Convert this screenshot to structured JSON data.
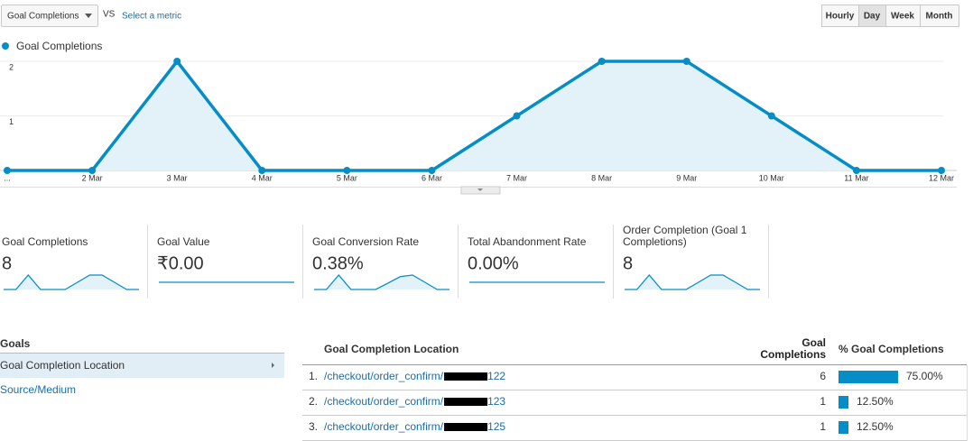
{
  "toolbar": {
    "metric": "Goal Completions",
    "vs": "VS",
    "compare_link": "Select a metric",
    "buttons": [
      {
        "label": "Hourly",
        "selected": false
      },
      {
        "label": "Day",
        "selected": true
      },
      {
        "label": "Week",
        "selected": false
      },
      {
        "label": "Month",
        "selected": false
      }
    ]
  },
  "chart_data": {
    "type": "line",
    "categories": [
      "...",
      "2 Mar",
      "3 Mar",
      "4 Mar",
      "5 Mar",
      "6 Mar",
      "7 Mar",
      "8 Mar",
      "9 Mar",
      "10 Mar",
      "11 Mar",
      "12 Mar"
    ],
    "series": [
      {
        "name": "Goal Completions",
        "color": "#058dc7",
        "values": [
          0,
          0,
          2,
          0,
          0,
          0,
          1,
          2,
          2,
          1,
          0,
          0
        ]
      }
    ],
    "ylim": [
      0,
      2
    ],
    "yticks": [
      1,
      2
    ],
    "grid": true
  },
  "scorecards": [
    {
      "title": "Goal Completions",
      "value": "8",
      "sparkline": [
        0,
        0,
        2,
        0,
        0,
        0,
        1,
        2,
        2,
        1,
        0,
        0
      ]
    },
    {
      "title": "Goal Value",
      "value": "₹0.00",
      "sparkline": [
        0,
        0,
        0,
        0,
        0,
        0,
        0,
        0,
        0,
        0,
        0,
        0
      ]
    },
    {
      "title": "Goal Conversion Rate",
      "value": "0.38%",
      "sparkline": [
        0,
        0,
        0.9,
        0,
        0,
        0,
        0.4,
        0.8,
        0.9,
        0.45,
        0,
        0
      ]
    },
    {
      "title": "Total Abandonment Rate",
      "value": "0.00%",
      "sparkline": [
        0,
        0,
        0,
        0,
        0,
        0,
        0,
        0,
        0,
        0,
        0,
        0
      ]
    },
    {
      "title": "Order Completion (Goal 1 Completions)",
      "value": "8",
      "sparkline": [
        0,
        0,
        2,
        0,
        0,
        0,
        1,
        2,
        2,
        1,
        0,
        0
      ]
    }
  ],
  "dimensions": {
    "heading": "Goals",
    "items": [
      {
        "label": "Goal Completion Location",
        "selected": true
      },
      {
        "label": "Source/Medium",
        "selected": false
      }
    ]
  },
  "table": {
    "headers": [
      "Goal Completion Location",
      "Goal Completions",
      "% Goal Completions"
    ],
    "rows": [
      {
        "index": "1.",
        "location_prefix": "/checkout/order_confirm/",
        "location_suffix": "122",
        "completions": 6,
        "percent": 75,
        "percent_label": "75.00%"
      },
      {
        "index": "2.",
        "location_prefix": "/checkout/order_confirm/",
        "location_suffix": "123",
        "completions": 1,
        "percent": 12.5,
        "percent_label": "12.50%"
      },
      {
        "index": "3.",
        "location_prefix": "/checkout/order_confirm/",
        "location_suffix": "125",
        "completions": 1,
        "percent": 12.5,
        "percent_label": "12.50%"
      }
    ]
  }
}
